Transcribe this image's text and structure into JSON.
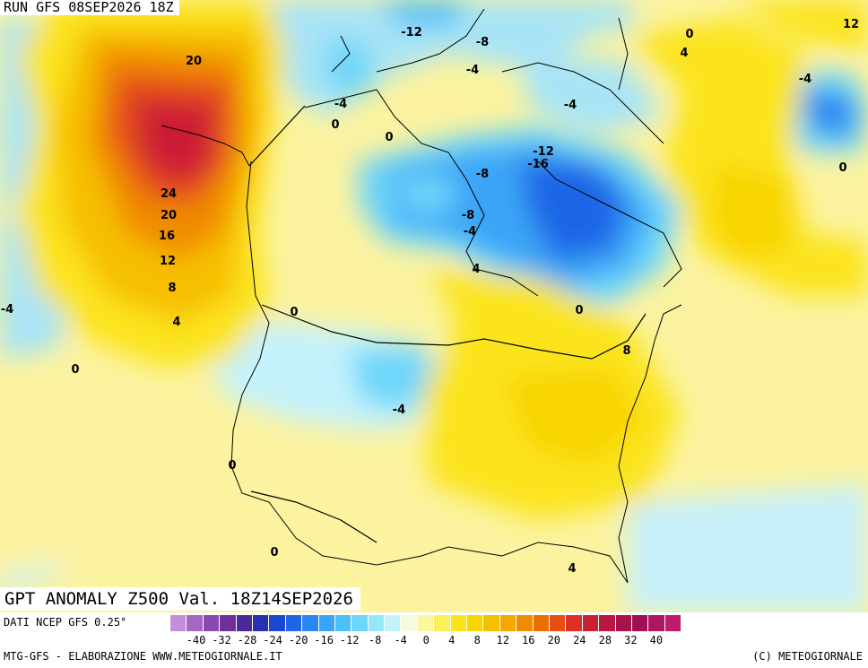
{
  "header": {
    "run": "RUN GFS 08SEP2026 18Z"
  },
  "title": "GPT ANOMALY Z500 Val. 18Z14SEP2026",
  "footer": {
    "source": "DATI NCEP GFS 0.25°",
    "credit_left": "MTG-GFS - ELABORAZIONE WWW.METEOGIORNALE.IT",
    "credit_right": "(C) METEOGIORNALE"
  },
  "legend": {
    "colors": [
      "#c48fd8",
      "#a468c4",
      "#8a48b0",
      "#6f2f99",
      "#4a2a9a",
      "#2a2fb4",
      "#1a48d2",
      "#1f66e6",
      "#2a86f0",
      "#3aa4f6",
      "#4cc0f8",
      "#6ed6fa",
      "#98e6fb",
      "#c4f2fc",
      "#f6fbdc",
      "#fbf6a0",
      "#fbef5c",
      "#fbe41a",
      "#f8d400",
      "#f6bf00",
      "#f4a800",
      "#f08c00",
      "#ec6e00",
      "#e64e12",
      "#dc3028",
      "#cc1e34",
      "#ba1840",
      "#a8124a",
      "#a01054",
      "#b01660",
      "#c01a6c"
    ],
    "ticks": [
      "-40",
      "-32",
      "-28",
      "-24",
      "-20",
      "-16",
      "-12",
      "-8",
      "-4",
      "0",
      "4",
      "8",
      "12",
      "16",
      "20",
      "24",
      "28",
      "32",
      "40"
    ]
  },
  "contour_labels": [
    {
      "text": "20"
    },
    {
      "text": "24"
    },
    {
      "text": "20"
    },
    {
      "text": "16"
    },
    {
      "text": "12"
    },
    {
      "text": "8"
    },
    {
      "text": "4"
    },
    {
      "text": "-4"
    },
    {
      "text": "0"
    },
    {
      "text": "0"
    },
    {
      "text": "0"
    },
    {
      "text": "-4"
    },
    {
      "text": "0"
    },
    {
      "text": "-12"
    },
    {
      "text": "-8"
    },
    {
      "text": "-4"
    },
    {
      "text": "-4"
    },
    {
      "text": "-12"
    },
    {
      "text": "-16"
    },
    {
      "text": "-8"
    },
    {
      "text": "-8"
    },
    {
      "text": "-4"
    },
    {
      "text": "4"
    },
    {
      "text": "0"
    },
    {
      "text": "8"
    },
    {
      "text": "-4"
    },
    {
      "text": "0"
    },
    {
      "text": "0"
    },
    {
      "text": "4"
    },
    {
      "text": "0"
    },
    {
      "text": "4"
    },
    {
      "text": "12"
    },
    {
      "text": "-4"
    },
    {
      "text": "0"
    }
  ]
}
